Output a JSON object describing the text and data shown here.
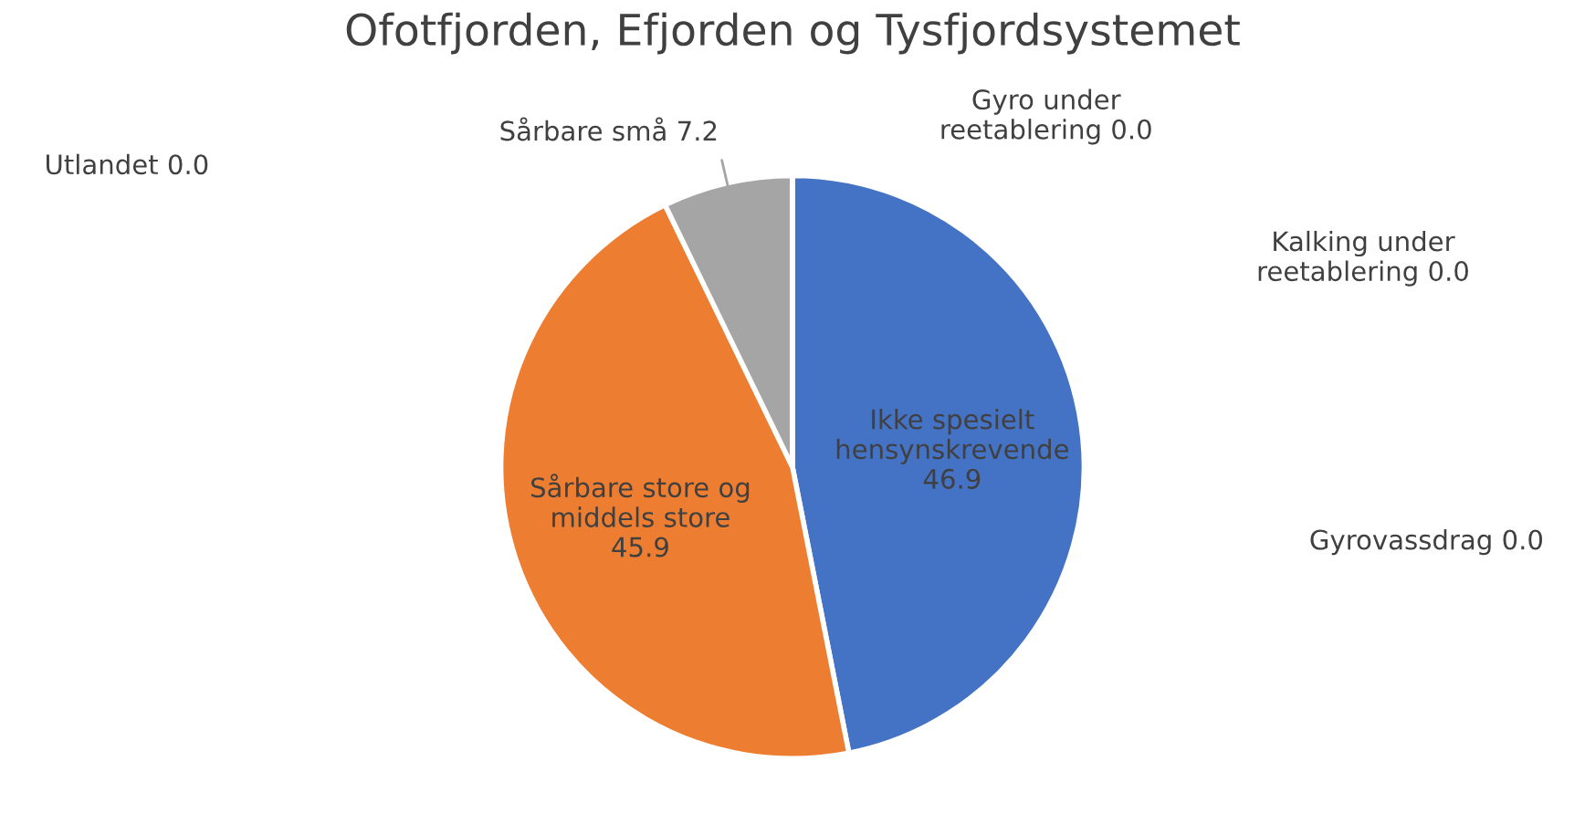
{
  "chart_data": {
    "type": "pie",
    "title": "Ofotfjorden, Efjorden og Tysfjordsystemet",
    "categories": [
      "Ikke spesielt hensynskrevende",
      "Sårbare store og middels store",
      "Sårbare små",
      "Gyro under reetablering",
      "Utlandet",
      "Kalking under reetablering",
      "Gyrovassdrag"
    ],
    "values": [
      46.9,
      45.9,
      7.2,
      0.0,
      0.0,
      0.0,
      0.0
    ],
    "value_labels": [
      "46.9",
      "45.9",
      "7.2",
      "0.0",
      "0.0",
      "0.0",
      "0.0"
    ],
    "colors": [
      "#4472c4",
      "#ed7d31",
      "#a5a5a5",
      "#ffc000",
      "#5b9bd5",
      "#70ad47",
      "#264478"
    ]
  }
}
